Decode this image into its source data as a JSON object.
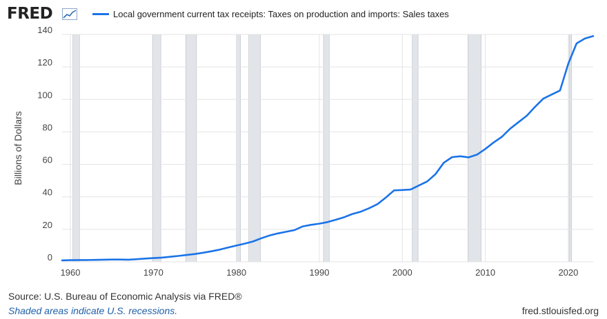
{
  "header": {
    "logo_text": "FRED",
    "legend_label": "Local government current tax receipts: Taxes on production and imports: Sales taxes",
    "series_color": "#1a73e8"
  },
  "footer": {
    "source": "Source: U.S. Bureau of Economic Analysis via FRED®",
    "shaded_note": "Shaded areas indicate U.S. recessions.",
    "url": "fred.stlouisfed.org"
  },
  "chart_data": {
    "type": "line",
    "title": "Local government current tax receipts: Taxes on production and imports: Sales taxes",
    "xlabel": "",
    "ylabel": "Billions of Dollars",
    "xlim": [
      1959,
      2023
    ],
    "ylim": [
      0,
      140
    ],
    "x_ticks": [
      1960,
      1970,
      1980,
      1990,
      2000,
      2010,
      2020
    ],
    "y_ticks": [
      0,
      20,
      40,
      60,
      80,
      100,
      120,
      140
    ],
    "grid": true,
    "recessions": [
      [
        1960.3,
        1961.1
      ],
      [
        1969.9,
        1970.9
      ],
      [
        1973.9,
        1975.2
      ],
      [
        1980.0,
        1980.5
      ],
      [
        1981.5,
        1982.9
      ],
      [
        1990.5,
        1991.2
      ],
      [
        2001.2,
        2001.9
      ],
      [
        2007.9,
        2009.5
      ],
      [
        2020.1,
        2020.4
      ]
    ],
    "recession_color": "#e1e4e8",
    "series": [
      {
        "name": "Sales taxes",
        "color": "#1a73e8",
        "x": [
          1959,
          1960,
          1961,
          1962,
          1963,
          1964,
          1965,
          1966,
          1967,
          1968,
          1969,
          1970,
          1971,
          1972,
          1973,
          1974,
          1975,
          1976,
          1977,
          1978,
          1979,
          1980,
          1981,
          1982,
          1983,
          1984,
          1985,
          1986,
          1987,
          1988,
          1989,
          1990,
          1991,
          1992,
          1993,
          1994,
          1995,
          1996,
          1997,
          1998,
          1999,
          2000,
          2001,
          2002,
          2003,
          2004,
          2005,
          2006,
          2007,
          2008,
          2009,
          2010,
          2011,
          2012,
          2013,
          2014,
          2015,
          2016,
          2017,
          2018,
          2019,
          2020,
          2021,
          2022,
          2023
        ],
        "values": [
          0.9,
          1.0,
          1.1,
          1.1,
          1.2,
          1.3,
          1.4,
          1.4,
          1.3,
          1.6,
          2.0,
          2.3,
          2.6,
          3.1,
          3.6,
          4.2,
          4.8,
          5.6,
          6.5,
          7.5,
          8.8,
          10.0,
          11.2,
          12.5,
          14.5,
          16.2,
          17.5,
          18.5,
          19.5,
          21.8,
          22.8,
          23.5,
          24.5,
          25.9,
          27.5,
          29.5,
          30.9,
          33.0,
          35.5,
          39.5,
          44.0,
          44.2,
          44.5,
          47.0,
          49.5,
          54.0,
          61.0,
          64.5,
          65.0,
          64.3,
          66.0,
          69.5,
          73.5,
          77.0,
          82.0,
          86.0,
          90.0,
          95.5,
          100.5,
          103.0,
          105.5,
          122.0,
          134.5,
          137.5,
          139.0
        ]
      }
    ]
  }
}
